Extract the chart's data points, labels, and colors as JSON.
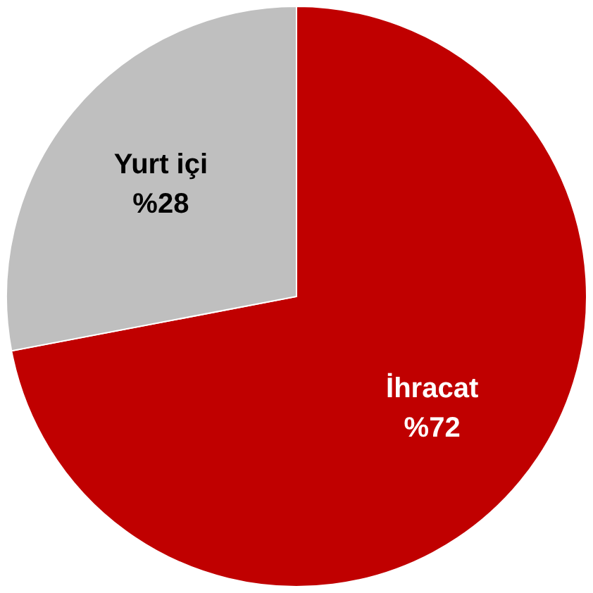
{
  "chart_data": {
    "type": "pie",
    "categories": [
      "İhracat",
      "Yurt içi"
    ],
    "values": [
      72,
      28
    ],
    "colors": [
      "#c00000",
      "#bfbfbf"
    ],
    "value_labels": [
      "%72",
      "%28"
    ]
  }
}
